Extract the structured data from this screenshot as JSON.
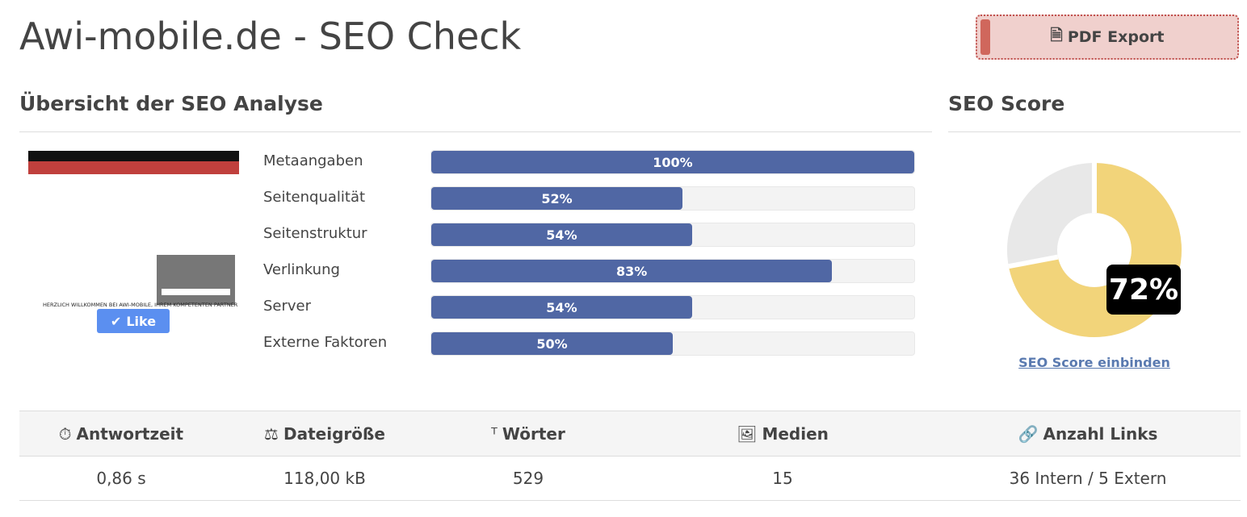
{
  "header": {
    "title": "Awi-mobile.de - SEO Check",
    "button": "PDF Export"
  },
  "overview": {
    "heading": "Übersicht der SEO Analyse",
    "preview": {
      "caption": "HERZLICH WILLKOMMEN BEI AWI-MOBILE, IHREM KOMPETENTEN PARTNER",
      "like": "Like"
    },
    "bars": [
      {
        "label": "Metaangaben",
        "value": 100,
        "value_label": "100%"
      },
      {
        "label": "Seitenqualität",
        "value": 52,
        "value_label": "52%"
      },
      {
        "label": "Seitenstruktur",
        "value": 54,
        "value_label": "54%"
      },
      {
        "label": "Verlinkung",
        "value": 83,
        "value_label": "83%"
      },
      {
        "label": "Server",
        "value": 54,
        "value_label": "54%"
      },
      {
        "label": "Externe Faktoren",
        "value": 50,
        "value_label": "50%"
      }
    ]
  },
  "score": {
    "heading": "SEO Score",
    "value": 72,
    "value_label": "72%",
    "link": "SEO Score einbinden"
  },
  "stats": {
    "headers": [
      "Antwortzeit",
      "Dateigröße",
      "Wörter",
      "Medien",
      "Anzahl Links"
    ],
    "values": [
      "0,86 s",
      "118,00 kB",
      "529",
      "15",
      "36 Intern / 5 Extern"
    ]
  }
}
